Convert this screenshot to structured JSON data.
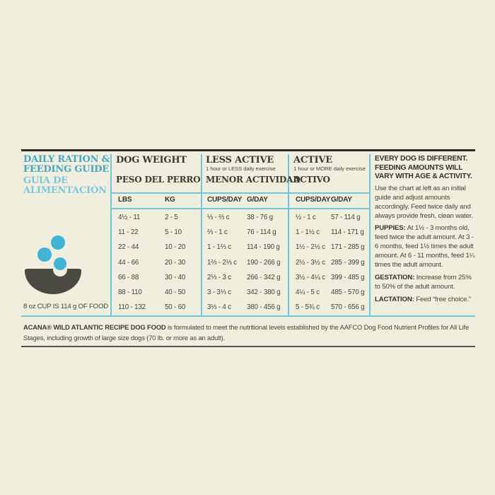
{
  "palette": {
    "background": "#f0efdf",
    "accent_teal": "#47a6c4",
    "accent_light_blue": "#7cc6dc",
    "divider_blue": "#74c5da",
    "rule_dark": "#2b2a26",
    "text_dark": "#3b3a31",
    "bowl_gray": "#4b4a42",
    "kibble_blue": "#41b3d5"
  },
  "icons": {
    "bowl": "dog-food-bowl-icon",
    "kibble": "kibble-dot-icon"
  },
  "left_panel": {
    "title_lines": [
      "DAILY RATION &",
      "FEEDING GUIDE"
    ],
    "subtitle_lines": [
      "GUIA DE",
      "ALIMENTACIÓN"
    ],
    "cup_note": "8 oz CUP IS 114 g OF FOOD"
  },
  "table": {
    "groups": [
      {
        "title": "DOG WEIGHT",
        "subtitle": "",
        "title2": "PESO DEL PERRO",
        "cols": [
          "LBS",
          "KG"
        ]
      },
      {
        "title": "LESS ACTIVE",
        "subtitle": "1 hour or LESS daily exercise",
        "title2": "MENOR ACTIVIDAD",
        "cols": [
          "CUPS/DAY",
          "G/DAY"
        ]
      },
      {
        "title": "ACTIVE",
        "subtitle": "1 hour or MORE daily exercise",
        "title2": "ACTIVO",
        "cols": [
          "CUPS/DAY",
          "G/DAY"
        ]
      }
    ],
    "rows": [
      [
        "4½ - 11",
        "2 - 5",
        "⅓ - ⅔ c",
        "38 - 76 g",
        "½ - 1 c",
        "57 - 114 g"
      ],
      [
        "11 - 22",
        "5 - 10",
        "⅔ - 1 c",
        "76 - 114 g",
        "1 - 1½ c",
        "114 - 171 g"
      ],
      [
        "22 - 44",
        "10 - 20",
        "1 - 1⅔ c",
        "114 - 190 g",
        "1½ - 2½ c",
        "171 - 285 g"
      ],
      [
        "44 - 66",
        "20 - 30",
        "1⅔ - 2⅓ c",
        "190 - 266 g",
        "2½ - 3½ c",
        "285 - 399 g"
      ],
      [
        "66 - 88",
        "30 - 40",
        "2⅓ - 3 c",
        "266 - 342 g",
        "3½ - 4¼ c",
        "399 - 485 g"
      ],
      [
        "88 - 110",
        "40 - 50",
        "3 - 3⅓ c",
        "342 - 380 g",
        "4¼ - 5 c",
        "485 - 570 g"
      ],
      [
        "110 - 132",
        "50 - 60",
        "3⅓ - 4 c",
        "380 - 456 g",
        "5 - 5¾ c",
        "570 - 656 g"
      ]
    ]
  },
  "advice_panel": {
    "heading_lines": [
      "EVERY DOG IS DIFFERENT.",
      "FEEDING AMOUNTS WILL",
      "VARY WITH AGE & ACTIVITY."
    ],
    "intro": "Use the chart at left as an initial guide and adjust amounts accordingly. Feed twice daily and always provide fresh, clean water.",
    "sections": [
      {
        "label": "PUPPIES:",
        "text": "At 1½ - 3 months old, feed twice the adult amount. At 3 - 6 months, feed 1½ times the adult amount. At 6 - 11 months, feed 1¼ times the adult amount."
      },
      {
        "label": "GESTATION:",
        "text": "Increase from 25% to 50% of the adult amount."
      },
      {
        "label": "LACTATION:",
        "text": "Feed “free choice.”"
      }
    ]
  },
  "footer": {
    "bold": "ACANA® WILD ATLANTIC RECIPE DOG FOOD",
    "text": "is formulated to meet the nutritional levels established by the AAFCO Dog Food Nutrient Profiles for All Life Stages, including growth of large size dogs (70 lb. or more as an adult)."
  }
}
